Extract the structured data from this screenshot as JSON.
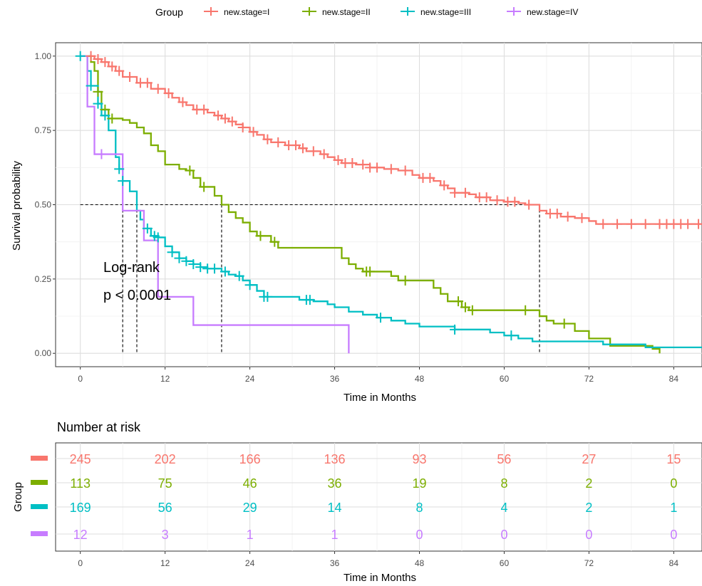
{
  "legend": {
    "title": "Group",
    "entries": [
      {
        "label": "new.stage=I",
        "color": "#F8766D"
      },
      {
        "label": "new.stage=II",
        "color": "#7CAE00"
      },
      {
        "label": "new.stage=III",
        "color": "#00BFC4"
      },
      {
        "label": "new.stage=IV",
        "color": "#C77CFF"
      }
    ]
  },
  "annotation": {
    "line1": "Log-rank",
    "line2": "p < 0.0001"
  },
  "chart_data": [
    {
      "type": "line",
      "chart_kind": "kaplan-meier",
      "xlabel": "Time in Months",
      "ylabel": "Survival probability",
      "xlim": [
        -3.5,
        88
      ],
      "ylim": [
        -0.045,
        1.045
      ],
      "xticks": [
        "0",
        "12",
        "24",
        "36",
        "48",
        "60",
        "72",
        "84"
      ],
      "yticks": [
        "0.00",
        "0.25",
        "0.50",
        "0.75",
        "1.00"
      ],
      "grid": true,
      "legend_position": "top",
      "median_lines": {
        "y": 0.5,
        "x_values": [
          6,
          8,
          20,
          65
        ]
      },
      "series": [
        {
          "name": "new.stage=I",
          "color": "#F8766D",
          "steps": [
            [
              0,
              1.0
            ],
            [
              2,
              0.99
            ],
            [
              3,
              0.98
            ],
            [
              4,
              0.965
            ],
            [
              5,
              0.95
            ],
            [
              6,
              0.93
            ],
            [
              8,
              0.91
            ],
            [
              10,
              0.89
            ],
            [
              12,
              0.875
            ],
            [
              13,
              0.86
            ],
            [
              14,
              0.845
            ],
            [
              15,
              0.835
            ],
            [
              16,
              0.82
            ],
            [
              18,
              0.81
            ],
            [
              19,
              0.8
            ],
            [
              20,
              0.79
            ],
            [
              21,
              0.78
            ],
            [
              22,
              0.77
            ],
            [
              23,
              0.76
            ],
            [
              24,
              0.745
            ],
            [
              25,
              0.735
            ],
            [
              26,
              0.72
            ],
            [
              27,
              0.71
            ],
            [
              29,
              0.7
            ],
            [
              31,
              0.69
            ],
            [
              32,
              0.68
            ],
            [
              34,
              0.67
            ],
            [
              35,
              0.66
            ],
            [
              36,
              0.65
            ],
            [
              37,
              0.64
            ],
            [
              39,
              0.635
            ],
            [
              41,
              0.625
            ],
            [
              43,
              0.62
            ],
            [
              45,
              0.615
            ],
            [
              47,
              0.6
            ],
            [
              48,
              0.59
            ],
            [
              50,
              0.58
            ],
            [
              51,
              0.565
            ],
            [
              52,
              0.555
            ],
            [
              53,
              0.54
            ],
            [
              55,
              0.535
            ],
            [
              56,
              0.525
            ],
            [
              58,
              0.515
            ],
            [
              60,
              0.51
            ],
            [
              62,
              0.505
            ],
            [
              63,
              0.5
            ],
            [
              65,
              0.48
            ],
            [
              66,
              0.47
            ],
            [
              68,
              0.46
            ],
            [
              70,
              0.455
            ],
            [
              72,
              0.445
            ],
            [
              73,
              0.435
            ],
            [
              76,
              0.435
            ],
            [
              88,
              0.435
            ]
          ],
          "censor": [
            1.5,
            2.5,
            3.5,
            4.5,
            5.5,
            7,
            8.5,
            9.5,
            11,
            12.5,
            14.5,
            16.5,
            17.5,
            19.5,
            20.5,
            21.5,
            23,
            24.5,
            26.5,
            28,
            29.5,
            30.5,
            31.5,
            33,
            34.5,
            36.5,
            37.5,
            38.5,
            40,
            41,
            42,
            44,
            46,
            48.5,
            49.5,
            51.5,
            53,
            54.5,
            56.5,
            57.5,
            59,
            60.5,
            61.5,
            63.5,
            66.5,
            67.5,
            69,
            71,
            74,
            76,
            78,
            80,
            82,
            83,
            84,
            85,
            86,
            87.5
          ]
        },
        {
          "name": "new.stage=II",
          "color": "#7CAE00",
          "steps": [
            [
              0,
              1.0
            ],
            [
              1.5,
              0.98
            ],
            [
              2,
              0.95
            ],
            [
              2.5,
              0.88
            ],
            [
              3,
              0.82
            ],
            [
              4,
              0.79
            ],
            [
              6,
              0.785
            ],
            [
              7,
              0.775
            ],
            [
              8,
              0.76
            ],
            [
              9,
              0.74
            ],
            [
              10,
              0.7
            ],
            [
              11,
              0.68
            ],
            [
              12,
              0.635
            ],
            [
              14,
              0.62
            ],
            [
              15,
              0.615
            ],
            [
              16,
              0.59
            ],
            [
              17,
              0.56
            ],
            [
              19,
              0.53
            ],
            [
              20,
              0.5
            ],
            [
              21,
              0.475
            ],
            [
              22,
              0.455
            ],
            [
              23,
              0.44
            ],
            [
              24,
              0.41
            ],
            [
              25,
              0.395
            ],
            [
              27,
              0.375
            ],
            [
              28,
              0.355
            ],
            [
              30,
              0.355
            ],
            [
              37,
              0.32
            ],
            [
              38,
              0.3
            ],
            [
              39,
              0.285
            ],
            [
              40,
              0.275
            ],
            [
              44,
              0.26
            ],
            [
              45,
              0.245
            ],
            [
              48,
              0.245
            ],
            [
              50,
              0.22
            ],
            [
              51,
              0.2
            ],
            [
              52,
              0.175
            ],
            [
              54,
              0.155
            ],
            [
              55,
              0.145
            ],
            [
              63,
              0.145
            ],
            [
              65,
              0.125
            ],
            [
              66,
              0.11
            ],
            [
              67,
              0.1
            ],
            [
              70,
              0.075
            ],
            [
              72,
              0.05
            ],
            [
              75,
              0.025
            ],
            [
              81,
              0.015
            ],
            [
              82,
              0.0
            ]
          ],
          "censor": [
            2.5,
            3.5,
            4.5,
            15.5,
            17.5,
            25.5,
            27.5,
            40.5,
            41,
            46,
            53.5,
            54.5,
            55.5,
            63,
            68.5
          ]
        },
        {
          "name": "new.stage=III",
          "color": "#00BFC4",
          "steps": [
            [
              0,
              1.0
            ],
            [
              1,
              0.95
            ],
            [
              1.5,
              0.9
            ],
            [
              2.5,
              0.84
            ],
            [
              3,
              0.8
            ],
            [
              4,
              0.75
            ],
            [
              5,
              0.66
            ],
            [
              5.5,
              0.62
            ],
            [
              6,
              0.58
            ],
            [
              7,
              0.545
            ],
            [
              8,
              0.48
            ],
            [
              8.5,
              0.45
            ],
            [
              9,
              0.42
            ],
            [
              10,
              0.395
            ],
            [
              11,
              0.39
            ],
            [
              12,
              0.36
            ],
            [
              13,
              0.34
            ],
            [
              14,
              0.32
            ],
            [
              15,
              0.31
            ],
            [
              16,
              0.3
            ],
            [
              17,
              0.29
            ],
            [
              18,
              0.285
            ],
            [
              20,
              0.275
            ],
            [
              21,
              0.265
            ],
            [
              22,
              0.26
            ],
            [
              23,
              0.245
            ],
            [
              24,
              0.23
            ],
            [
              25,
              0.21
            ],
            [
              26,
              0.19
            ],
            [
              27,
              0.19
            ],
            [
              31,
              0.18
            ],
            [
              33,
              0.175
            ],
            [
              35,
              0.165
            ],
            [
              36,
              0.155
            ],
            [
              38,
              0.14
            ],
            [
              40,
              0.13
            ],
            [
              42,
              0.12
            ],
            [
              44,
              0.11
            ],
            [
              46,
              0.1
            ],
            [
              48,
              0.09
            ],
            [
              53,
              0.08
            ],
            [
              58,
              0.07
            ],
            [
              60,
              0.06
            ],
            [
              62,
              0.05
            ],
            [
              64,
              0.04
            ],
            [
              69,
              0.04
            ],
            [
              74,
              0.03
            ],
            [
              80,
              0.02
            ],
            [
              88,
              0.02
            ]
          ],
          "censor": [
            0,
            1.5,
            2.5,
            3.5,
            5.5,
            6,
            9.5,
            10.5,
            11,
            13,
            14,
            15,
            16,
            17,
            18,
            19,
            20.5,
            22.5,
            24,
            26,
            26.5,
            32,
            32.5,
            42.5,
            53,
            61
          ]
        },
        {
          "name": "new.stage=IV",
          "color": "#C77CFF",
          "steps": [
            [
              0,
              1.0
            ],
            [
              1,
              0.92
            ],
            [
              1,
              0.83
            ],
            [
              2,
              0.83
            ],
            [
              2,
              0.67
            ],
            [
              6,
              0.67
            ],
            [
              6,
              0.48
            ],
            [
              9,
              0.48
            ],
            [
              9,
              0.38
            ],
            [
              11,
              0.38
            ],
            [
              11,
              0.19
            ],
            [
              16,
              0.19
            ],
            [
              16,
              0.095
            ],
            [
              38,
              0.095
            ],
            [
              38,
              0.0
            ]
          ],
          "censor": [
            3
          ]
        }
      ]
    },
    {
      "type": "table",
      "title": "Number at risk",
      "xlabel": "Time in Months",
      "ylabel": "Group",
      "times": [
        "0",
        "12",
        "24",
        "36",
        "48",
        "60",
        "72",
        "84"
      ],
      "rows": [
        {
          "group": "new.stage=I",
          "color": "#F8766D",
          "values": [
            "245",
            "202",
            "166",
            "136",
            "93",
            "56",
            "27",
            "15"
          ]
        },
        {
          "group": "new.stage=II",
          "color": "#7CAE00",
          "values": [
            "113",
            "75",
            "46",
            "36",
            "19",
            "8",
            "2",
            "0"
          ]
        },
        {
          "group": "new.stage=III",
          "color": "#00BFC4",
          "values": [
            "169",
            "56",
            "29",
            "14",
            "8",
            "4",
            "2",
            "1"
          ]
        },
        {
          "group": "new.stage=IV",
          "color": "#C77CFF",
          "values": [
            "12",
            "3",
            "1",
            "1",
            "0",
            "0",
            "0",
            "0"
          ]
        }
      ]
    }
  ]
}
